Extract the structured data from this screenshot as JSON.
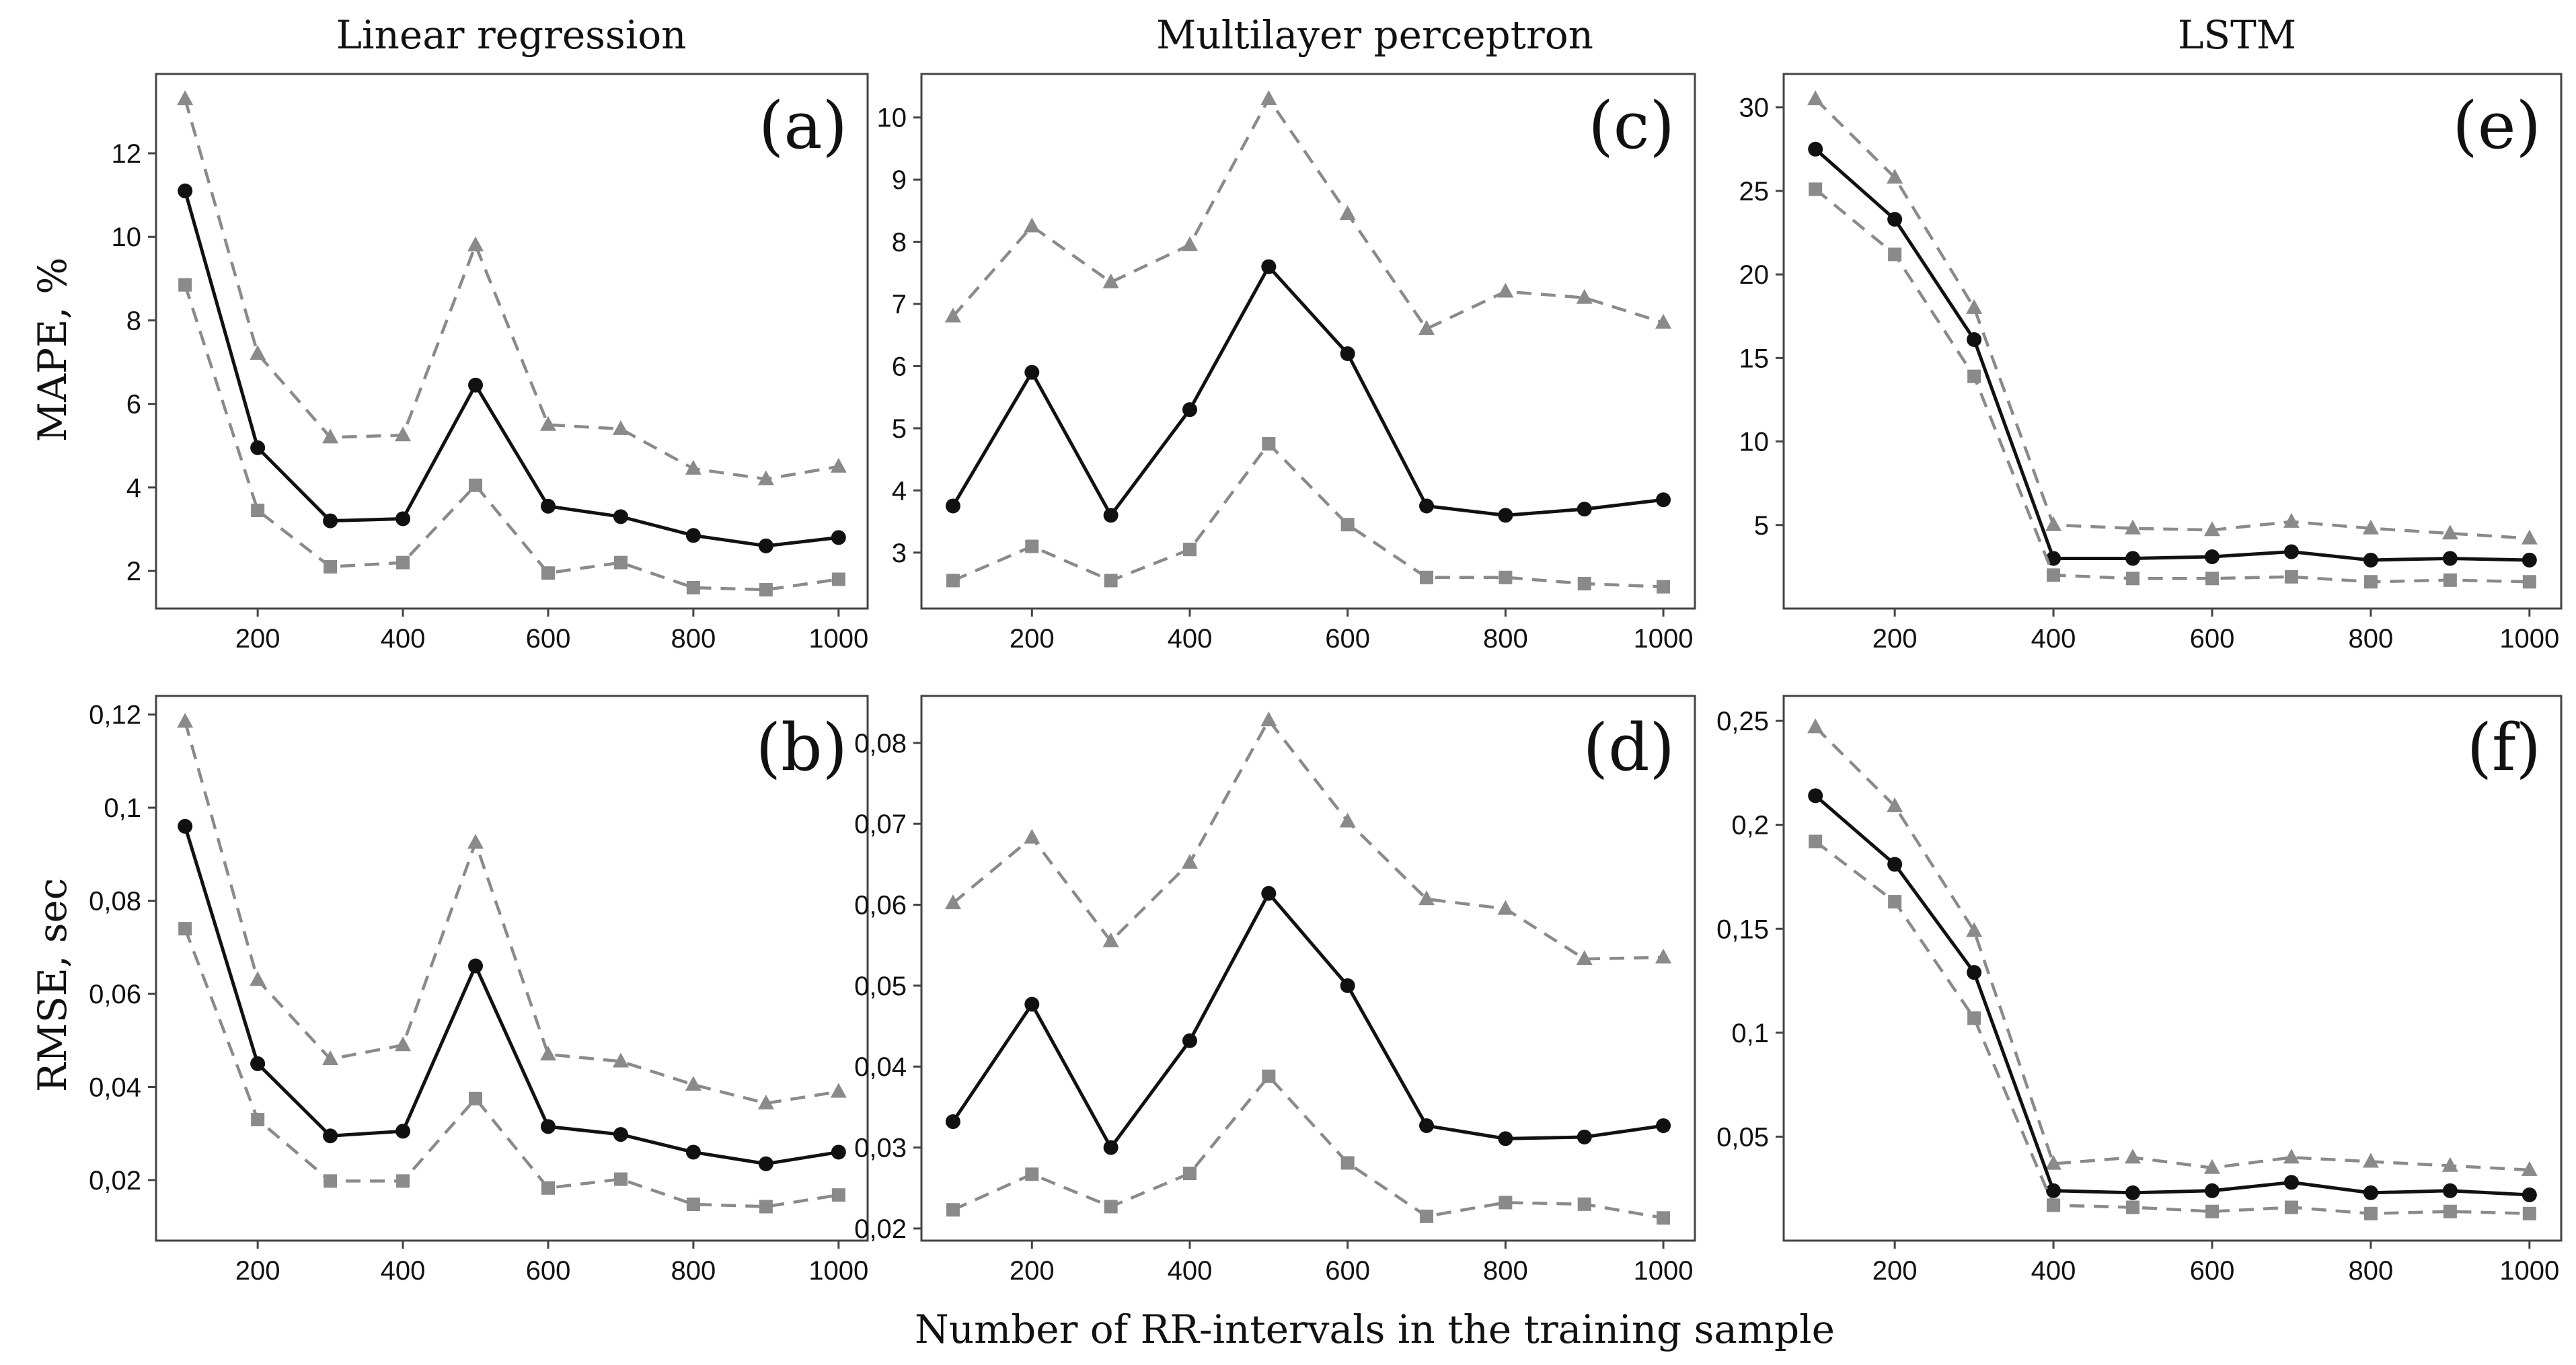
{
  "figure": {
    "xlabel": "Number of RR-intervals in the training sample",
    "column_titles": [
      "Linear regression",
      "Multilayer perceptron",
      "LSTM"
    ],
    "row_ylabels": [
      "MAPE, %",
      "RMSE, sec"
    ],
    "colors": {
      "median": "#111111",
      "upper": "#8a8a8a",
      "lower": "#8a8a8a",
      "frame": "#444444"
    }
  },
  "chart_data": [
    {
      "panel": "(a)",
      "type": "line",
      "title": "Linear regression",
      "ylabel": "MAPE, %",
      "xlabel": "",
      "x": [
        100,
        200,
        300,
        400,
        500,
        600,
        700,
        800,
        900,
        1000
      ],
      "xticks": [
        200,
        400,
        600,
        800,
        1000
      ],
      "xlim": [
        60,
        1040
      ],
      "yticks": [
        2,
        4,
        6,
        8,
        10,
        12
      ],
      "ytick_labels": [
        "2",
        "4",
        "6",
        "8",
        "10",
        "12"
      ],
      "ylim": [
        1.1,
        13.9
      ],
      "series": [
        {
          "role": "upper",
          "style": "dashed",
          "marker": "triangle",
          "values": [
            13.3,
            7.2,
            5.2,
            5.25,
            9.8,
            5.5,
            5.4,
            4.45,
            4.2,
            4.5
          ]
        },
        {
          "role": "median",
          "style": "solid",
          "marker": "circle",
          "values": [
            11.1,
            4.95,
            3.2,
            3.25,
            6.45,
            3.55,
            3.3,
            2.85,
            2.6,
            2.8
          ]
        },
        {
          "role": "lower",
          "style": "dashed",
          "marker": "square",
          "values": [
            8.85,
            3.45,
            2.1,
            2.2,
            4.05,
            1.95,
            2.2,
            1.6,
            1.55,
            1.8
          ]
        }
      ]
    },
    {
      "panel": "(c)",
      "type": "line",
      "title": "Multilayer perceptron",
      "ylabel": "",
      "xlabel": "",
      "x": [
        100,
        200,
        300,
        400,
        500,
        600,
        700,
        800,
        900,
        1000
      ],
      "xticks": [
        200,
        400,
        600,
        800,
        1000
      ],
      "xlim": [
        60,
        1040
      ],
      "yticks": [
        3,
        4,
        5,
        6,
        7,
        8,
        9,
        10
      ],
      "ytick_labels": [
        "3",
        "4",
        "5",
        "6",
        "7",
        "8",
        "9",
        "10"
      ],
      "ylim": [
        2.1,
        10.7
      ],
      "series": [
        {
          "role": "upper",
          "style": "dashed",
          "marker": "triangle",
          "values": [
            6.8,
            8.25,
            7.35,
            7.95,
            10.3,
            8.45,
            6.6,
            7.2,
            7.1,
            6.7
          ]
        },
        {
          "role": "median",
          "style": "solid",
          "marker": "circle",
          "values": [
            3.75,
            5.9,
            3.6,
            5.3,
            7.6,
            6.2,
            3.75,
            3.6,
            3.7,
            3.85
          ]
        },
        {
          "role": "lower",
          "style": "dashed",
          "marker": "square",
          "values": [
            2.55,
            3.1,
            2.55,
            3.05,
            4.75,
            3.45,
            2.6,
            2.6,
            2.5,
            2.45
          ]
        }
      ]
    },
    {
      "panel": "(e)",
      "type": "line",
      "title": "LSTM",
      "ylabel": "",
      "xlabel": "",
      "x": [
        100,
        200,
        300,
        400,
        500,
        600,
        700,
        800,
        900,
        1000
      ],
      "xticks": [
        200,
        400,
        600,
        800,
        1000
      ],
      "xlim": [
        60,
        1040
      ],
      "yticks": [
        5,
        10,
        15,
        20,
        25,
        30
      ],
      "ytick_labels": [
        "5",
        "10",
        "15",
        "20",
        "25",
        "30"
      ],
      "ylim": [
        0,
        32
      ],
      "series": [
        {
          "role": "upper",
          "style": "dashed",
          "marker": "triangle",
          "values": [
            30.5,
            25.8,
            18.0,
            5.0,
            4.8,
            4.7,
            5.2,
            4.8,
            4.5,
            4.2
          ]
        },
        {
          "role": "median",
          "style": "solid",
          "marker": "circle",
          "values": [
            27.5,
            23.3,
            16.1,
            3.0,
            3.0,
            3.1,
            3.4,
            2.9,
            3.0,
            2.9
          ]
        },
        {
          "role": "lower",
          "style": "dashed",
          "marker": "square",
          "values": [
            25.1,
            21.2,
            13.9,
            2.0,
            1.8,
            1.8,
            1.9,
            1.6,
            1.7,
            1.6
          ]
        }
      ]
    },
    {
      "panel": "(b)",
      "type": "line",
      "title": "",
      "ylabel": "RMSE, sec",
      "xlabel": "",
      "x": [
        100,
        200,
        300,
        400,
        500,
        600,
        700,
        800,
        900,
        1000
      ],
      "xticks": [
        200,
        400,
        600,
        800,
        1000
      ],
      "xlim": [
        60,
        1040
      ],
      "yticks": [
        0.02,
        0.04,
        0.06,
        0.08,
        0.1,
        0.12
      ],
      "ytick_labels": [
        "0,02",
        "0,04",
        "0,06",
        "0,08",
        "0,1",
        "0,12"
      ],
      "ylim": [
        0.007,
        0.124
      ],
      "series": [
        {
          "role": "upper",
          "style": "dashed",
          "marker": "triangle",
          "values": [
            0.1185,
            0.063,
            0.046,
            0.049,
            0.0925,
            0.047,
            0.0455,
            0.0405,
            0.0365,
            0.039
          ]
        },
        {
          "role": "median",
          "style": "solid",
          "marker": "circle",
          "values": [
            0.096,
            0.045,
            0.0295,
            0.0305,
            0.066,
            0.0315,
            0.0298,
            0.026,
            0.0235,
            0.026
          ]
        },
        {
          "role": "lower",
          "style": "dashed",
          "marker": "square",
          "values": [
            0.074,
            0.033,
            0.0198,
            0.0198,
            0.0375,
            0.0183,
            0.0202,
            0.0148,
            0.0143,
            0.0168
          ]
        }
      ]
    },
    {
      "panel": "(d)",
      "type": "line",
      "title": "",
      "ylabel": "",
      "xlabel": "",
      "x": [
        100,
        200,
        300,
        400,
        500,
        600,
        700,
        800,
        900,
        1000
      ],
      "xticks": [
        200,
        400,
        600,
        800,
        1000
      ],
      "xlim": [
        60,
        1040
      ],
      "yticks": [
        0.02,
        0.03,
        0.04,
        0.05,
        0.06,
        0.07,
        0.08
      ],
      "ytick_labels": [
        "0,02",
        "0,03",
        "0,04",
        "0,05",
        "0,06",
        "0,07",
        "0,08"
      ],
      "ylim": [
        0.0185,
        0.0858
      ],
      "series": [
        {
          "role": "upper",
          "style": "dashed",
          "marker": "triangle",
          "values": [
            0.0602,
            0.0683,
            0.0555,
            0.0652,
            0.0828,
            0.0703,
            0.0607,
            0.0595,
            0.0533,
            0.0535
          ]
        },
        {
          "role": "median",
          "style": "solid",
          "marker": "circle",
          "values": [
            0.0332,
            0.0477,
            0.03,
            0.0432,
            0.0614,
            0.05,
            0.0327,
            0.0311,
            0.0313,
            0.0327
          ]
        },
        {
          "role": "lower",
          "style": "dashed",
          "marker": "square",
          "values": [
            0.0223,
            0.0267,
            0.0227,
            0.0268,
            0.0388,
            0.0281,
            0.0215,
            0.0232,
            0.023,
            0.0213
          ]
        }
      ]
    },
    {
      "panel": "(f)",
      "type": "line",
      "title": "",
      "ylabel": "",
      "xlabel": "",
      "x": [
        100,
        200,
        300,
        400,
        500,
        600,
        700,
        800,
        900,
        1000
      ],
      "xticks": [
        200,
        400,
        600,
        800,
        1000
      ],
      "xlim": [
        60,
        1040
      ],
      "yticks": [
        0.05,
        0.1,
        0.15,
        0.2,
        0.25
      ],
      "ytick_labels": [
        "0,05",
        "0,1",
        "0,15",
        "0,2",
        "0,25"
      ],
      "ylim": [
        0.0,
        0.262
      ],
      "series": [
        {
          "role": "upper",
          "style": "dashed",
          "marker": "triangle",
          "values": [
            0.247,
            0.209,
            0.149,
            0.037,
            0.04,
            0.035,
            0.04,
            0.038,
            0.036,
            0.034
          ]
        },
        {
          "role": "median",
          "style": "solid",
          "marker": "circle",
          "values": [
            0.214,
            0.181,
            0.129,
            0.024,
            0.023,
            0.024,
            0.028,
            0.023,
            0.024,
            0.022
          ]
        },
        {
          "role": "lower",
          "style": "dashed",
          "marker": "square",
          "values": [
            0.192,
            0.163,
            0.107,
            0.017,
            0.016,
            0.014,
            0.016,
            0.013,
            0.014,
            0.013
          ]
        }
      ]
    }
  ]
}
